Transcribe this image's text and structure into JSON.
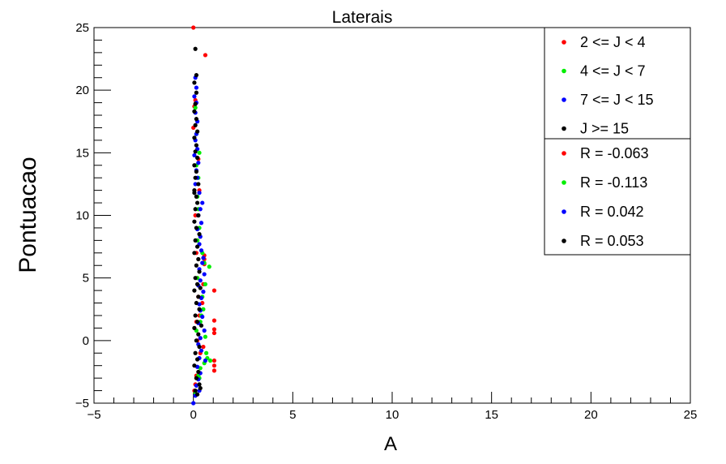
{
  "chart_data": {
    "type": "scatter",
    "title": "Laterais",
    "xlabel": "A",
    "ylabel": "Pontuacao",
    "xlim": [
      -5,
      25
    ],
    "ylim": [
      -5,
      25
    ],
    "xticks": [
      -5,
      0,
      5,
      10,
      15,
      20,
      25
    ],
    "yticks": [
      -5,
      0,
      5,
      10,
      15,
      20,
      25
    ],
    "grid": false,
    "legend_position": "top-right",
    "series": [
      {
        "name": "2 <= J < 4",
        "color": "#ff0000",
        "points": [
          [
            0.0,
            25.0
          ],
          [
            0.6,
            22.8
          ],
          [
            0.1,
            19.2
          ],
          [
            0.05,
            18.7
          ],
          [
            0.1,
            10.0
          ],
          [
            0.2,
            8.0
          ],
          [
            0.15,
            7.0
          ],
          [
            0.55,
            6.8
          ],
          [
            0.55,
            6.5
          ],
          [
            0.55,
            6.1
          ],
          [
            0.5,
            4.5
          ],
          [
            1.05,
            4.0
          ],
          [
            0.45,
            3.0
          ],
          [
            0.3,
            2.0
          ],
          [
            1.05,
            1.6
          ],
          [
            1.05,
            0.9
          ],
          [
            1.05,
            0.6
          ],
          [
            0.5,
            -0.5
          ],
          [
            0.35,
            -1.0
          ],
          [
            1.05,
            -1.6
          ],
          [
            1.05,
            -2.0
          ],
          [
            1.05,
            -2.4
          ],
          [
            0.15,
            -2.8
          ],
          [
            0.1,
            -3.5
          ],
          [
            0.05,
            -4.0
          ],
          [
            0.2,
            0.0
          ],
          [
            0.15,
            1.5
          ],
          [
            0.25,
            3.5
          ],
          [
            0.2,
            5.0
          ],
          [
            0.3,
            12.0
          ],
          [
            0.25,
            14.5
          ],
          [
            0.0,
            17.0
          ]
        ]
      },
      {
        "name": "4 <= J < 7",
        "color": "#00ee00",
        "points": [
          [
            0.3,
            15.0
          ],
          [
            0.15,
            14.0
          ],
          [
            0.25,
            13.0
          ],
          [
            0.2,
            11.5
          ],
          [
            0.3,
            9.0
          ],
          [
            0.45,
            7.0
          ],
          [
            0.55,
            6.2
          ],
          [
            0.8,
            5.9
          ],
          [
            0.6,
            4.5
          ],
          [
            0.45,
            3.5
          ],
          [
            0.5,
            2.5
          ],
          [
            0.35,
            1.5
          ],
          [
            0.6,
            0.3
          ],
          [
            0.65,
            -1.0
          ],
          [
            0.7,
            -1.4
          ],
          [
            0.85,
            -1.6
          ],
          [
            0.55,
            -1.8
          ],
          [
            0.35,
            -2.2
          ],
          [
            0.25,
            -2.8
          ],
          [
            0.3,
            -3.0
          ],
          [
            0.1,
            -4.2
          ],
          [
            0.1,
            18.6
          ],
          [
            0.15,
            16.5
          ],
          [
            0.2,
            8.0
          ],
          [
            0.25,
            10.5
          ],
          [
            0.2,
            5.0
          ],
          [
            0.15,
            0.8
          ],
          [
            0.4,
            2.0
          ]
        ]
      },
      {
        "name": "7 <= J < 15",
        "color": "#0000ff",
        "points": [
          [
            0.15,
            20.2
          ],
          [
            0.05,
            19.5
          ],
          [
            0.1,
            18.2
          ],
          [
            0.2,
            17.5
          ],
          [
            0.15,
            16.5
          ],
          [
            0.1,
            16.0
          ],
          [
            0.2,
            15.3
          ],
          [
            0.05,
            14.8
          ],
          [
            0.25,
            14.2
          ],
          [
            0.15,
            13.6
          ],
          [
            0.2,
            13.0
          ],
          [
            0.1,
            12.5
          ],
          [
            0.3,
            11.8
          ],
          [
            0.45,
            11.0
          ],
          [
            0.35,
            10.5
          ],
          [
            0.25,
            10.0
          ],
          [
            0.4,
            9.4
          ],
          [
            0.2,
            8.9
          ],
          [
            0.35,
            8.3
          ],
          [
            0.3,
            7.7
          ],
          [
            0.4,
            7.2
          ],
          [
            0.5,
            6.6
          ],
          [
            0.45,
            6.2
          ],
          [
            0.3,
            5.7
          ],
          [
            0.55,
            5.3
          ],
          [
            0.35,
            4.8
          ],
          [
            0.25,
            4.4
          ],
          [
            0.5,
            3.9
          ],
          [
            0.4,
            3.4
          ],
          [
            0.3,
            2.9
          ],
          [
            0.35,
            2.4
          ],
          [
            0.45,
            1.9
          ],
          [
            0.25,
            1.4
          ],
          [
            0.55,
            0.8
          ],
          [
            0.35,
            0.2
          ],
          [
            0.25,
            -0.3
          ],
          [
            0.4,
            -0.8
          ],
          [
            0.3,
            -1.4
          ],
          [
            0.6,
            -1.6
          ],
          [
            0.2,
            -2.1
          ],
          [
            0.35,
            -2.6
          ],
          [
            0.25,
            -3.1
          ],
          [
            0.15,
            -3.6
          ],
          [
            0.3,
            -4.0
          ],
          [
            0.1,
            -4.4
          ],
          [
            0.0,
            -5.0
          ],
          [
            0.1,
            21.0
          ],
          [
            0.15,
            19.0
          ]
        ]
      },
      {
        "name": "J >= 15",
        "color": "#000000",
        "points": [
          [
            0.1,
            23.3
          ],
          [
            0.15,
            21.2
          ],
          [
            0.05,
            20.6
          ],
          [
            0.15,
            19.8
          ],
          [
            0.1,
            18.9
          ],
          [
            0.05,
            18.3
          ],
          [
            0.15,
            17.7
          ],
          [
            0.1,
            17.2
          ],
          [
            0.2,
            16.7
          ],
          [
            0.05,
            16.2
          ],
          [
            0.15,
            15.6
          ],
          [
            0.1,
            15.1
          ],
          [
            0.2,
            14.6
          ],
          [
            0.05,
            14.0
          ],
          [
            0.15,
            13.5
          ],
          [
            0.1,
            13.0
          ],
          [
            0.25,
            12.5
          ],
          [
            0.05,
            12.0
          ],
          [
            0.15,
            11.5
          ],
          [
            0.2,
            11.0
          ],
          [
            0.1,
            10.5
          ],
          [
            0.25,
            10.0
          ],
          [
            0.05,
            9.5
          ],
          [
            0.15,
            9.0
          ],
          [
            0.3,
            8.5
          ],
          [
            0.1,
            8.0
          ],
          [
            0.2,
            7.5
          ],
          [
            0.05,
            7.0
          ],
          [
            0.25,
            6.5
          ],
          [
            0.15,
            6.0
          ],
          [
            0.3,
            5.5
          ],
          [
            0.1,
            5.0
          ],
          [
            0.2,
            4.5
          ],
          [
            0.05,
            4.0
          ],
          [
            0.25,
            3.5
          ],
          [
            0.15,
            3.0
          ],
          [
            0.3,
            2.5
          ],
          [
            0.1,
            2.0
          ],
          [
            0.2,
            1.5
          ],
          [
            0.05,
            1.0
          ],
          [
            0.25,
            0.5
          ],
          [
            0.15,
            0.0
          ],
          [
            0.3,
            -0.5
          ],
          [
            0.1,
            -1.0
          ],
          [
            0.2,
            -1.5
          ],
          [
            0.05,
            -2.0
          ],
          [
            0.25,
            -2.5
          ],
          [
            0.15,
            -3.0
          ],
          [
            0.3,
            -3.5
          ],
          [
            0.1,
            -4.0
          ],
          [
            0.2,
            -4.3
          ],
          [
            0.35,
            -3.8
          ],
          [
            0.4,
            1.2
          ],
          [
            0.35,
            4.2
          ],
          [
            0.05,
            11.8
          ]
        ]
      }
    ],
    "correlation_legend": [
      {
        "label": "R = -0.063",
        "color": "#ff0000"
      },
      {
        "label": "R = -0.113",
        "color": "#00ee00"
      },
      {
        "label": "R = 0.042",
        "color": "#0000ff"
      },
      {
        "label": "R = 0.053",
        "color": "#000000"
      }
    ]
  }
}
